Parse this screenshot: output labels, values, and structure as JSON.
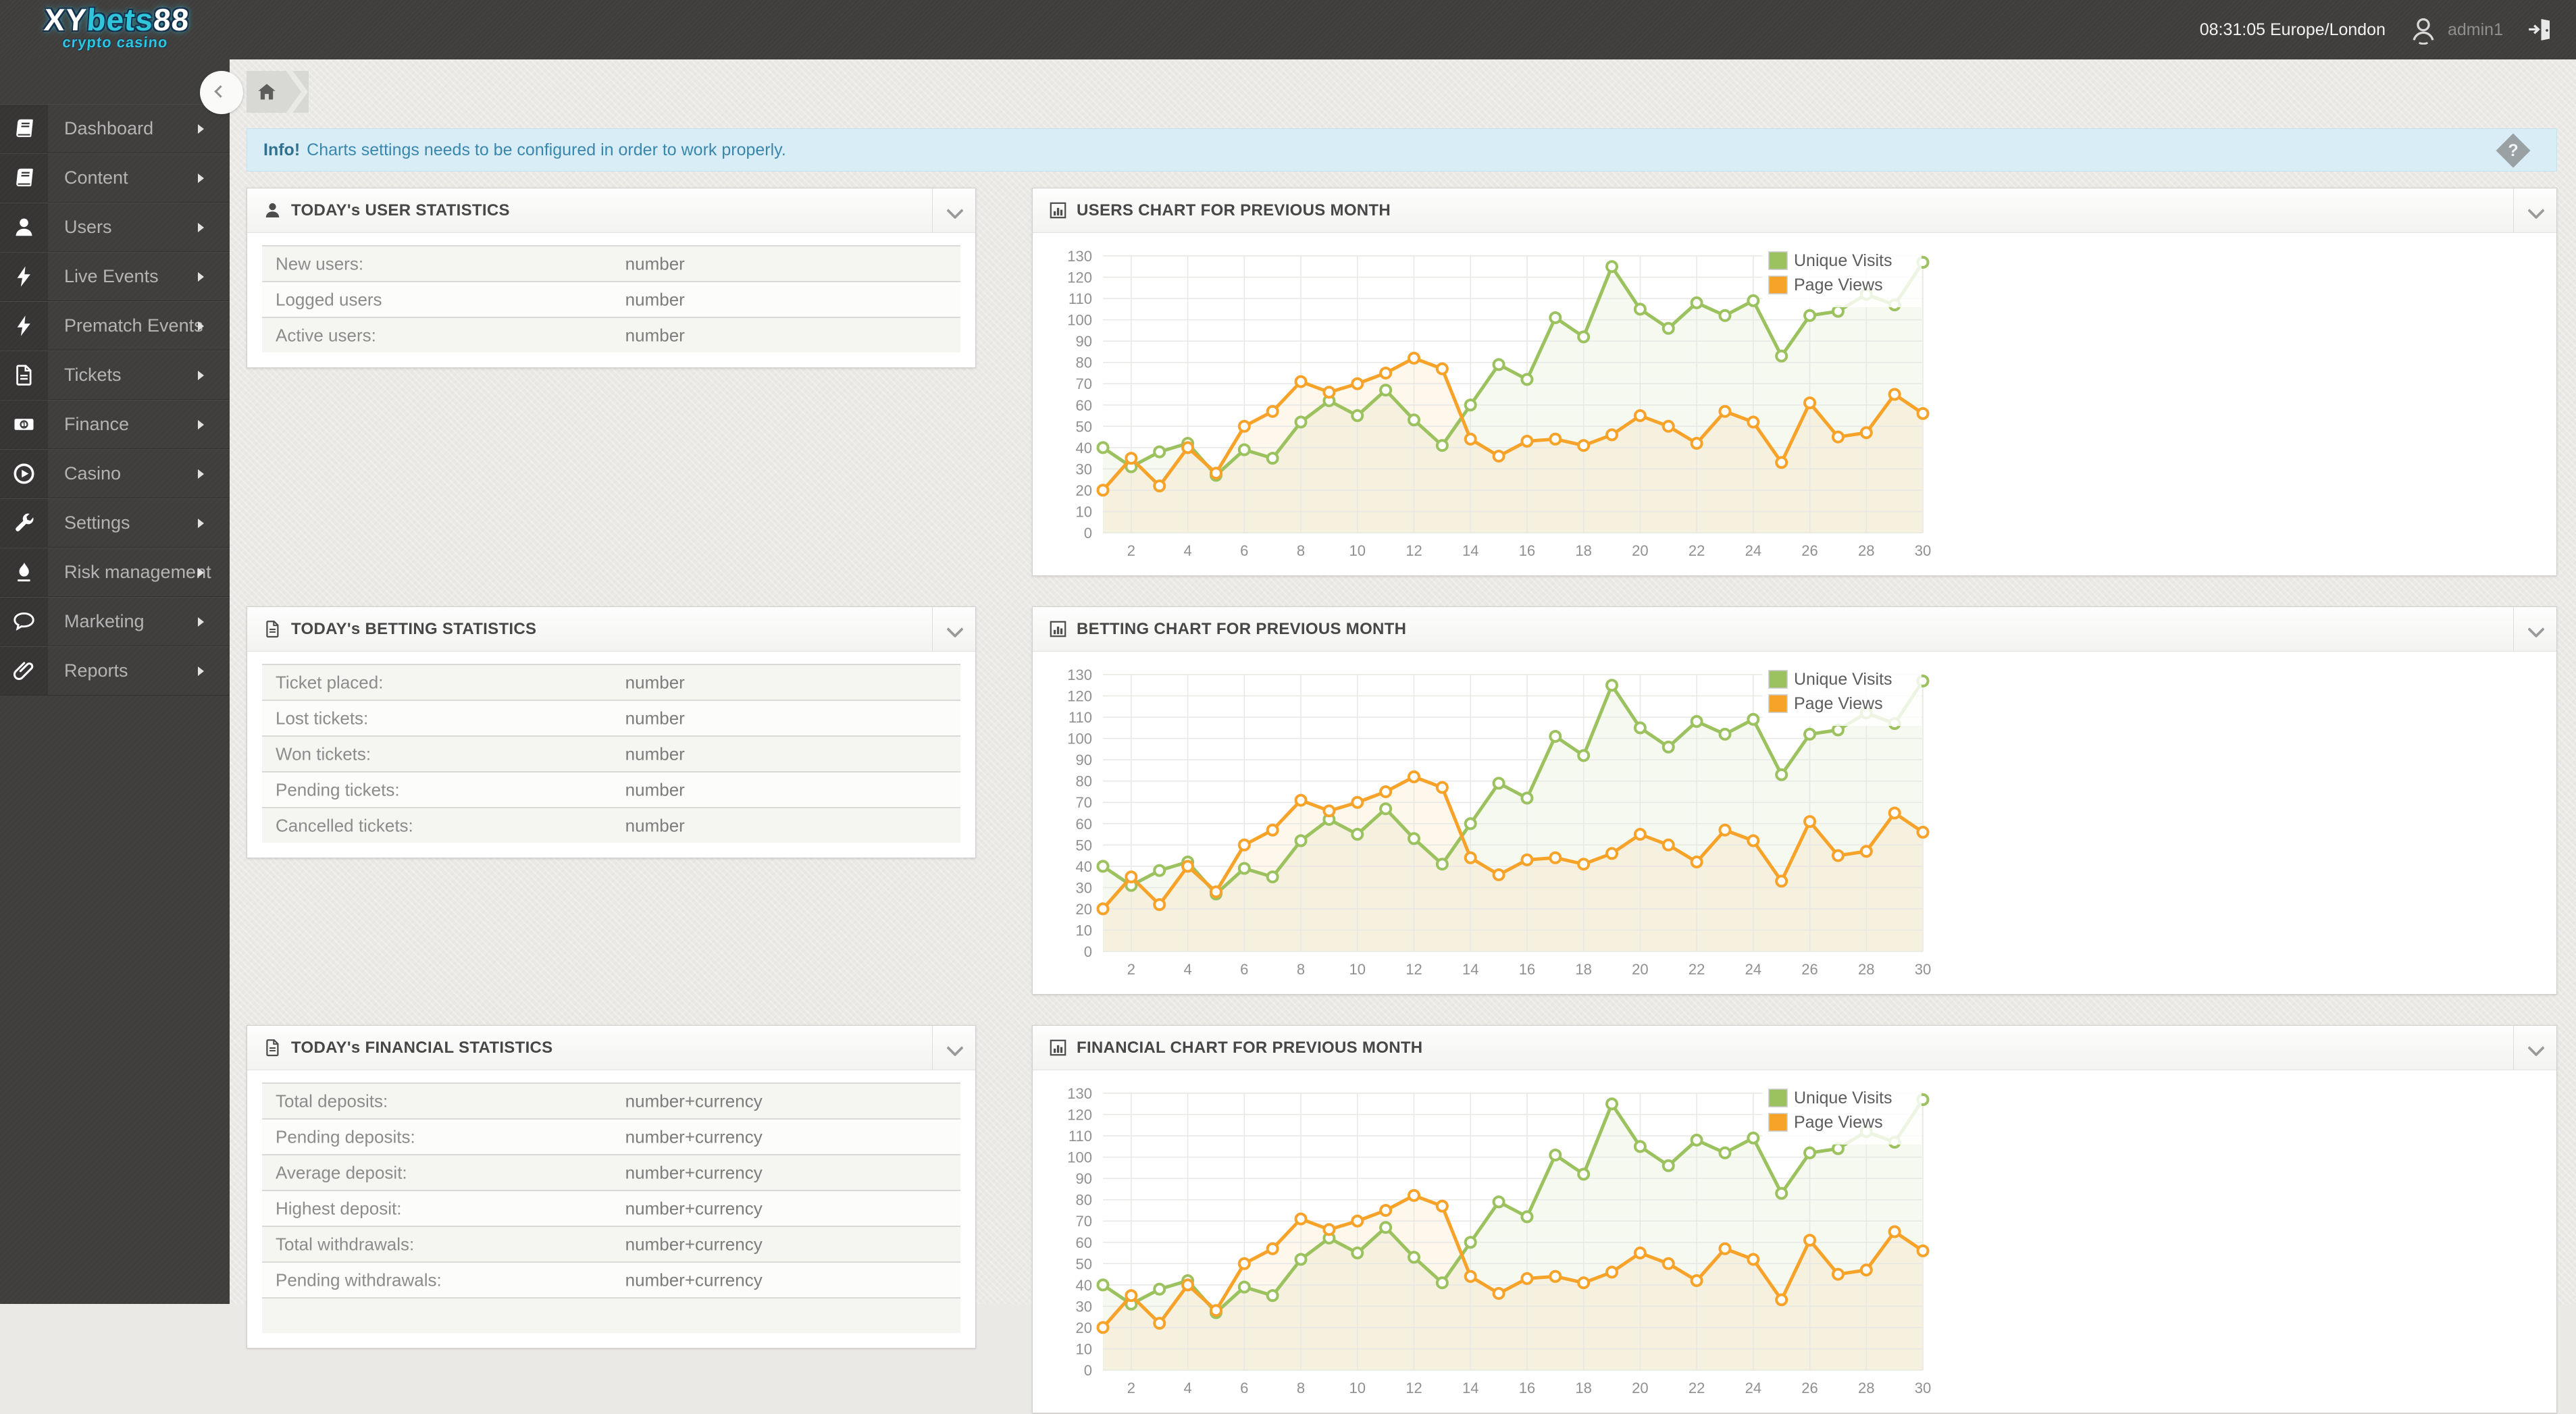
{
  "topbar": {
    "logo": {
      "part1": "XY",
      "part2": "bets",
      "part3": "88",
      "tagline": "crypto casino"
    },
    "clock": "08:31:05 Europe/London",
    "username": "admin1",
    "icons": {
      "user": "avatar-icon",
      "logout": "logout-door-icon"
    }
  },
  "sidebar": {
    "items": [
      {
        "label": "Dashboard",
        "icon": "book-icon"
      },
      {
        "label": "Content",
        "icon": "book-icon"
      },
      {
        "label": "Users",
        "icon": "user-icon"
      },
      {
        "label": "Live Events",
        "icon": "bolt-icon"
      },
      {
        "label": "Prematch Events",
        "icon": "bolt-icon"
      },
      {
        "label": "Tickets",
        "icon": "file-icon"
      },
      {
        "label": "Finance",
        "icon": "banknote-icon"
      },
      {
        "label": "Casino",
        "icon": "play-circle-icon"
      },
      {
        "label": "Settings",
        "icon": "wrench-icon"
      },
      {
        "label": "Risk management",
        "icon": "fire-icon"
      },
      {
        "label": "Marketing",
        "icon": "comment-icon"
      },
      {
        "label": "Reports",
        "icon": "paperclip-icon"
      }
    ]
  },
  "breadcrumb": {
    "home_icon": "home-icon"
  },
  "info_bar": {
    "prefix": "Info!",
    "message": "Charts settings needs to be configured in order to work properly.",
    "help_icon": "question-diamond-icon",
    "bg_color": "#d9edf7",
    "text_color": "#3a87ad"
  },
  "panels": {
    "user_stats": {
      "title": "TODAY's USER STATISTICS",
      "icon": "user-icon",
      "rows": [
        {
          "label": "New users:",
          "value": "number"
        },
        {
          "label": "Logged users",
          "value": "number"
        },
        {
          "label": "Active users:",
          "value": "number"
        }
      ]
    },
    "betting_stats": {
      "title": "TODAY's BETTING STATISTICS",
      "icon": "file-text-icon",
      "rows": [
        {
          "label": "Ticket placed:",
          "value": "number"
        },
        {
          "label": "Lost tickets:",
          "value": "number"
        },
        {
          "label": "Won tickets:",
          "value": "number"
        },
        {
          "label": "Pending tickets:",
          "value": "number"
        },
        {
          "label": "Cancelled tickets:",
          "value": "number"
        }
      ]
    },
    "financial_stats": {
      "title": "TODAY's FINANCIAL STATISTICS",
      "icon": "file-text-icon",
      "rows": [
        {
          "label": "Total deposits:",
          "value": "number+currency"
        },
        {
          "label": "Pending deposits:",
          "value": "number+currency"
        },
        {
          "label": "Average deposit:",
          "value": "number+currency"
        },
        {
          "label": "Highest deposit:",
          "value": "number+currency"
        },
        {
          "label": "Total withdrawals:",
          "value": "number+currency"
        },
        {
          "label": "Pending withdrawals:",
          "value": "number+currency"
        },
        {
          "label": "",
          "value": ""
        }
      ]
    },
    "users_chart": {
      "title": "USERS CHART FOR PREVIOUS MONTH",
      "icon": "bar-chart-icon"
    },
    "betting_chart": {
      "title": "BETTING CHART FOR PREVIOUS MONTH",
      "icon": "bar-chart-icon"
    },
    "financial_chart": {
      "title": "FINANCIAL CHART FOR PREVIOUS MONTH",
      "icon": "bar-chart-icon"
    }
  },
  "chart_data": [
    {
      "type": "line",
      "title": "USERS CHART FOR PREVIOUS MONTH",
      "x": [
        1,
        2,
        3,
        4,
        5,
        6,
        7,
        8,
        9,
        10,
        11,
        12,
        13,
        14,
        15,
        16,
        17,
        18,
        19,
        20,
        21,
        22,
        23,
        24,
        25,
        26,
        27,
        28,
        29,
        30
      ],
      "xticks": [
        2,
        4,
        6,
        8,
        10,
        12,
        14,
        16,
        18,
        20,
        22,
        24,
        26,
        28,
        30
      ],
      "ylim": [
        0,
        130
      ],
      "ytick_step": 10,
      "grid": true,
      "legend_position": "top-right",
      "series": [
        {
          "name": "Unique Visits",
          "color": "#9bc25e",
          "values": [
            40,
            31,
            38,
            42,
            27,
            39,
            35,
            52,
            62,
            55,
            67,
            53,
            41,
            60,
            79,
            72,
            101,
            92,
            125,
            105,
            96,
            108,
            102,
            109,
            83,
            102,
            104,
            112,
            107,
            127
          ]
        },
        {
          "name": "Page Views",
          "color": "#f7a229",
          "values": [
            20,
            35,
            22,
            40,
            28,
            50,
            57,
            71,
            66,
            70,
            75,
            82,
            77,
            44,
            36,
            43,
            44,
            41,
            46,
            55,
            50,
            42,
            57,
            52,
            33,
            61,
            45,
            47,
            65,
            56
          ]
        }
      ]
    },
    {
      "type": "line",
      "title": "BETTING CHART FOR PREVIOUS MONTH",
      "x": [
        1,
        2,
        3,
        4,
        5,
        6,
        7,
        8,
        9,
        10,
        11,
        12,
        13,
        14,
        15,
        16,
        17,
        18,
        19,
        20,
        21,
        22,
        23,
        24,
        25,
        26,
        27,
        28,
        29,
        30
      ],
      "xticks": [
        2,
        4,
        6,
        8,
        10,
        12,
        14,
        16,
        18,
        20,
        22,
        24,
        26,
        28,
        30
      ],
      "ylim": [
        0,
        130
      ],
      "ytick_step": 10,
      "grid": true,
      "legend_position": "top-right",
      "series": [
        {
          "name": "Unique Visits",
          "color": "#9bc25e",
          "values": [
            40,
            31,
            38,
            42,
            27,
            39,
            35,
            52,
            62,
            55,
            67,
            53,
            41,
            60,
            79,
            72,
            101,
            92,
            125,
            105,
            96,
            108,
            102,
            109,
            83,
            102,
            104,
            112,
            107,
            127
          ]
        },
        {
          "name": "Page Views",
          "color": "#f7a229",
          "values": [
            20,
            35,
            22,
            40,
            28,
            50,
            57,
            71,
            66,
            70,
            75,
            82,
            77,
            44,
            36,
            43,
            44,
            41,
            46,
            55,
            50,
            42,
            57,
            52,
            33,
            61,
            45,
            47,
            65,
            56
          ]
        }
      ]
    },
    {
      "type": "line",
      "title": "FINANCIAL CHART FOR PREVIOUS MONTH",
      "x": [
        1,
        2,
        3,
        4,
        5,
        6,
        7,
        8,
        9,
        10,
        11,
        12,
        13,
        14,
        15,
        16,
        17,
        18,
        19,
        20,
        21,
        22,
        23,
        24,
        25,
        26,
        27,
        28,
        29,
        30
      ],
      "xticks": [
        2,
        4,
        6,
        8,
        10,
        12,
        14,
        16,
        18,
        20,
        22,
        24,
        26,
        28,
        30
      ],
      "ylim": [
        0,
        130
      ],
      "ytick_step": 10,
      "grid": true,
      "legend_position": "top-right",
      "series": [
        {
          "name": "Unique Visits",
          "color": "#9bc25e",
          "values": [
            40,
            31,
            38,
            42,
            27,
            39,
            35,
            52,
            62,
            55,
            67,
            53,
            41,
            60,
            79,
            72,
            101,
            92,
            125,
            105,
            96,
            108,
            102,
            109,
            83,
            102,
            104,
            112,
            107,
            127
          ]
        },
        {
          "name": "Page Views",
          "color": "#f7a229",
          "values": [
            20,
            35,
            22,
            40,
            28,
            50,
            57,
            71,
            66,
            70,
            75,
            82,
            77,
            44,
            36,
            43,
            44,
            41,
            46,
            55,
            50,
            42,
            57,
            52,
            33,
            61,
            45,
            47,
            65,
            56
          ]
        }
      ]
    }
  ]
}
